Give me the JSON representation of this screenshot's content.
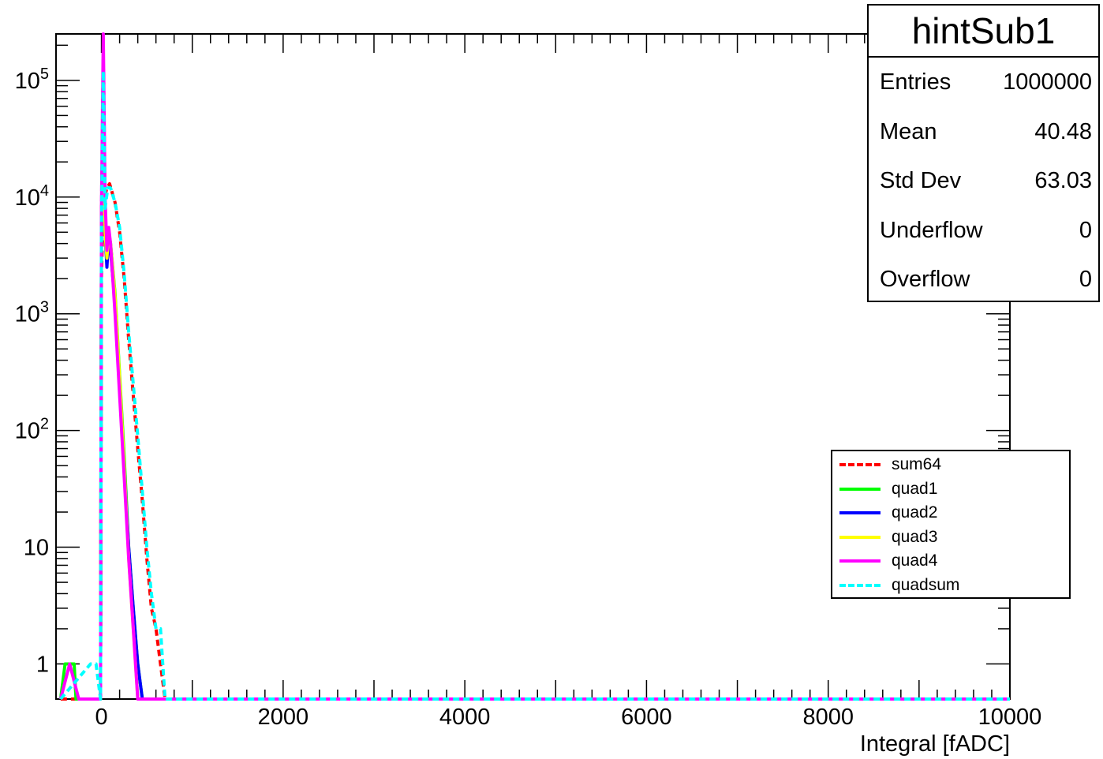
{
  "chart_data": {
    "type": "line",
    "title": "hintSub1",
    "xlabel": "Integral [fADC]",
    "ylabel": "",
    "xlim": [
      -500,
      10000
    ],
    "ylim": [
      0.5,
      250000
    ],
    "log_y": true,
    "grid": false,
    "legend_position": "right",
    "x_ticks": [
      0,
      2000,
      4000,
      6000,
      8000,
      10000
    ],
    "y_ticks": [
      {
        "value": 1,
        "base": "1",
        "exp": ""
      },
      {
        "value": 10,
        "base": "10",
        "exp": ""
      },
      {
        "value": 100,
        "base": "10",
        "exp": "2"
      },
      {
        "value": 1000,
        "base": "10",
        "exp": "3"
      },
      {
        "value": 10000,
        "base": "10",
        "exp": "4"
      },
      {
        "value": 100000,
        "base": "10",
        "exp": "5"
      }
    ],
    "stats": [
      {
        "label": "Entries",
        "value": "1000000"
      },
      {
        "label": "Mean",
        "value": "40.48"
      },
      {
        "label": "Std Dev",
        "value": "63.03"
      },
      {
        "label": "Underflow",
        "value": "0"
      },
      {
        "label": "Overflow",
        "value": "0"
      }
    ],
    "series": [
      {
        "name": "sum64",
        "color": "#ff0000",
        "dashed": true,
        "width": 4,
        "points": [
          [
            -450,
            0.5
          ],
          [
            -10,
            0.5
          ],
          [
            0,
            2000
          ],
          [
            20,
            9000
          ],
          [
            60,
            12000
          ],
          [
            90,
            13000
          ],
          [
            150,
            9000
          ],
          [
            200,
            5000
          ],
          [
            250,
            2000
          ],
          [
            300,
            600
          ],
          [
            350,
            200
          ],
          [
            400,
            70
          ],
          [
            450,
            25
          ],
          [
            500,
            8
          ],
          [
            550,
            3
          ],
          [
            600,
            2
          ],
          [
            650,
            1
          ],
          [
            700,
            0.5
          ],
          [
            10000,
            0.5
          ]
        ]
      },
      {
        "name": "quad1",
        "color": "#00ff00",
        "dashed": false,
        "width": 4,
        "points": [
          [
            -450,
            0.5
          ],
          [
            -400,
            1
          ],
          [
            -300,
            1
          ],
          [
            -280,
            0.5
          ],
          [
            -10,
            0.5
          ],
          [
            0,
            5000
          ],
          [
            20,
            150000
          ],
          [
            40,
            5000
          ],
          [
            60,
            3000
          ],
          [
            80,
            5000
          ],
          [
            100,
            4000
          ],
          [
            150,
            1500
          ],
          [
            200,
            300
          ],
          [
            250,
            60
          ],
          [
            300,
            10
          ],
          [
            350,
            3
          ],
          [
            400,
            1
          ],
          [
            450,
            0.5
          ],
          [
            10000,
            0.5
          ]
        ]
      },
      {
        "name": "quad2",
        "color": "#0000ff",
        "dashed": false,
        "width": 4,
        "points": [
          [
            -10,
            0.5
          ],
          [
            0,
            5000
          ],
          [
            20,
            150000
          ],
          [
            40,
            5000
          ],
          [
            60,
            2500
          ],
          [
            80,
            4500
          ],
          [
            100,
            3500
          ],
          [
            150,
            1200
          ],
          [
            200,
            250
          ],
          [
            250,
            50
          ],
          [
            300,
            10
          ],
          [
            350,
            3
          ],
          [
            400,
            1
          ],
          [
            450,
            0.5
          ],
          [
            10000,
            0.5
          ]
        ]
      },
      {
        "name": "quad3",
        "color": "#ffff00",
        "dashed": false,
        "width": 4,
        "points": [
          [
            -10,
            0.5
          ],
          [
            0,
            5000
          ],
          [
            20,
            150000
          ],
          [
            40,
            5000
          ],
          [
            60,
            3000
          ],
          [
            80,
            5000
          ],
          [
            100,
            4000
          ],
          [
            150,
            1400
          ],
          [
            200,
            280
          ],
          [
            250,
            50
          ],
          [
            300,
            8
          ],
          [
            350,
            2
          ],
          [
            400,
            0.5
          ],
          [
            10000,
            0.5
          ]
        ]
      },
      {
        "name": "quad4",
        "color": "#ff00ff",
        "dashed": false,
        "width": 4,
        "points": [
          [
            -450,
            0.5
          ],
          [
            -350,
            1
          ],
          [
            -250,
            0.5
          ],
          [
            -10,
            0.5
          ],
          [
            0,
            8000
          ],
          [
            20,
            250000
          ],
          [
            40,
            10000
          ],
          [
            60,
            3500
          ],
          [
            80,
            5500
          ],
          [
            100,
            4000
          ],
          [
            150,
            1000
          ],
          [
            200,
            200
          ],
          [
            250,
            40
          ],
          [
            300,
            8
          ],
          [
            350,
            2
          ],
          [
            400,
            0.5
          ],
          [
            10000,
            0.5
          ]
        ]
      },
      {
        "name": "quadsum",
        "color": "#00ffff",
        "dashed": true,
        "width": 4,
        "points": [
          [
            -450,
            0.5
          ],
          [
            -120,
            1
          ],
          [
            -60,
            1
          ],
          [
            -10,
            0.5
          ],
          [
            0,
            5000
          ],
          [
            20,
            120000
          ],
          [
            40,
            8000
          ],
          [
            70,
            12000
          ],
          [
            100,
            12000
          ],
          [
            150,
            9000
          ],
          [
            200,
            5500
          ],
          [
            250,
            2200
          ],
          [
            300,
            700
          ],
          [
            350,
            250
          ],
          [
            400,
            90
          ],
          [
            450,
            30
          ],
          [
            500,
            10
          ],
          [
            550,
            4
          ],
          [
            600,
            2
          ],
          [
            650,
            2
          ],
          [
            700,
            0.5
          ],
          [
            10000,
            0.5
          ]
        ]
      }
    ]
  }
}
